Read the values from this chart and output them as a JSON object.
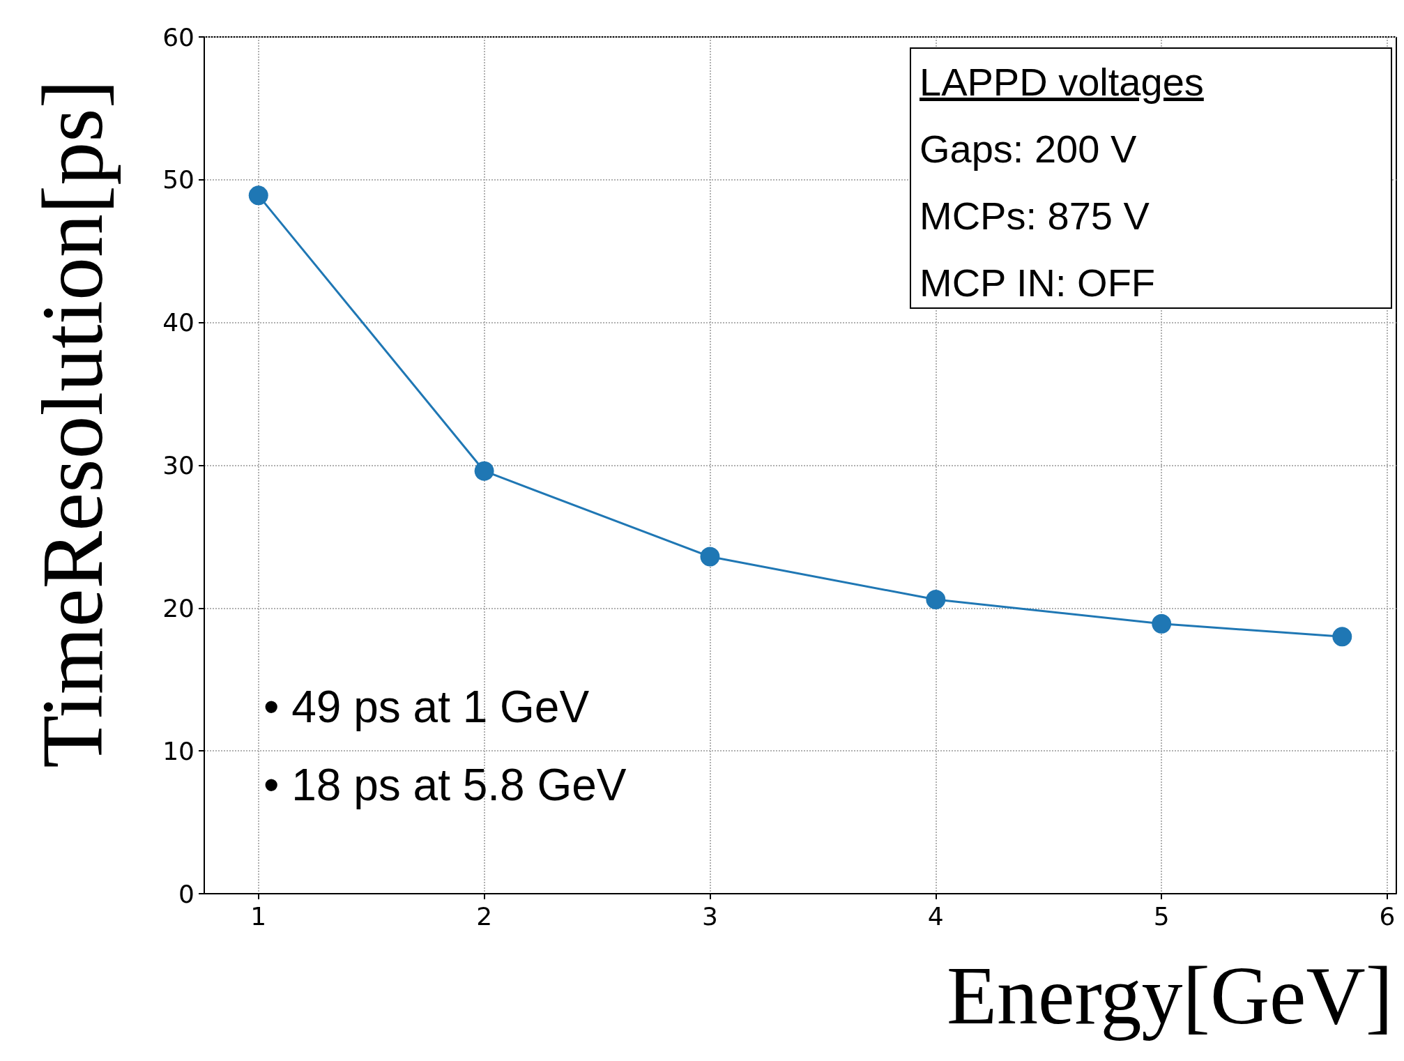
{
  "chart_data": {
    "type": "line",
    "xlabel": "Energy[GeV]",
    "ylabel": "TimeResolution[ps]",
    "x": [
      1,
      2,
      3,
      4,
      5,
      5.8
    ],
    "series": [
      {
        "color": "#1f77b4",
        "values": [
          48.9,
          29.6,
          23.6,
          20.6,
          18.9,
          18.0
        ]
      }
    ],
    "xlim": [
      0.76,
      6.04
    ],
    "xticks": [
      1,
      2,
      3,
      4,
      5,
      6
    ],
    "ylim": [
      0,
      60
    ],
    "yticks": [
      0,
      10,
      20,
      30,
      40,
      50,
      60
    ],
    "grid": true,
    "marker": "circle",
    "line_style": "solid",
    "annotations": [
      "LAPPD voltages",
      "Gaps: 200 V",
      "MCPs: 875 V",
      "MCP IN: OFF",
      "• 49 ps at 1 GeV",
      "• 18 ps at 5.8 GeV"
    ]
  }
}
